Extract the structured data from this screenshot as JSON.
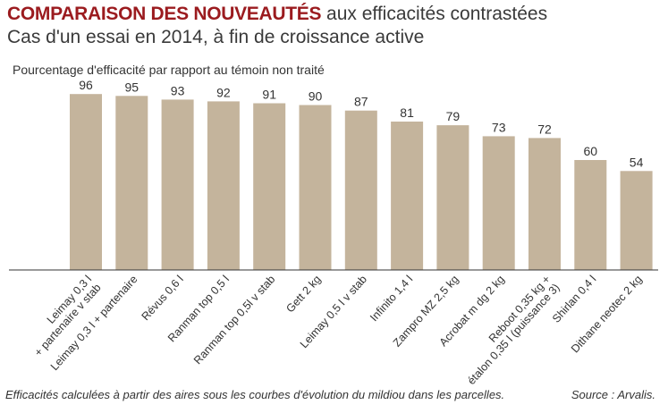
{
  "title": {
    "strong": "COMPARAISON DES NOUVEAUTÉS",
    "rest": " aux efficacités contrastées"
  },
  "subtitle": "Cas d'un essai en 2014, à fin de croissance active",
  "footnote": "Efficacités calculées à partir des aires sous les courbes d'évolution du mildiou dans les parcelles.",
  "source": "Source : Arvalis.",
  "colors": {
    "bar": "#c4b49c",
    "title_accent": "#9b1b1f",
    "axis": "#333333"
  },
  "chart_data": {
    "type": "bar",
    "ylabel": "Pourcentage d'efficacité par rapport au témoin non traité",
    "ylim": [
      0,
      100
    ],
    "grid": false,
    "categories": [
      [
        "Leimay 0,3 l",
        "+ partenaire v stab"
      ],
      [
        "Leimay 0,3 l + partenaire"
      ],
      [
        "Révus 0,6 l"
      ],
      [
        "Ranman top 0,5 l"
      ],
      [
        "Ranman top 0,5l v stab"
      ],
      [
        "Gett 2 kg"
      ],
      [
        "Leimay 0,5 l v stab"
      ],
      [
        "Infinito 1,4 l"
      ],
      [
        "Zampro MZ 2,5 kg"
      ],
      [
        "Acrobat m dg 2 kg"
      ],
      [
        "Reboot 0,35 kg +",
        "étalon 0,35 l (puissance 3)"
      ],
      [
        "Shirlan 0,4 l"
      ],
      [
        "Dithane neotec 2 kg"
      ]
    ],
    "values": [
      96,
      95,
      93,
      92,
      91,
      90,
      87,
      81,
      79,
      73,
      72,
      60,
      54
    ]
  }
}
